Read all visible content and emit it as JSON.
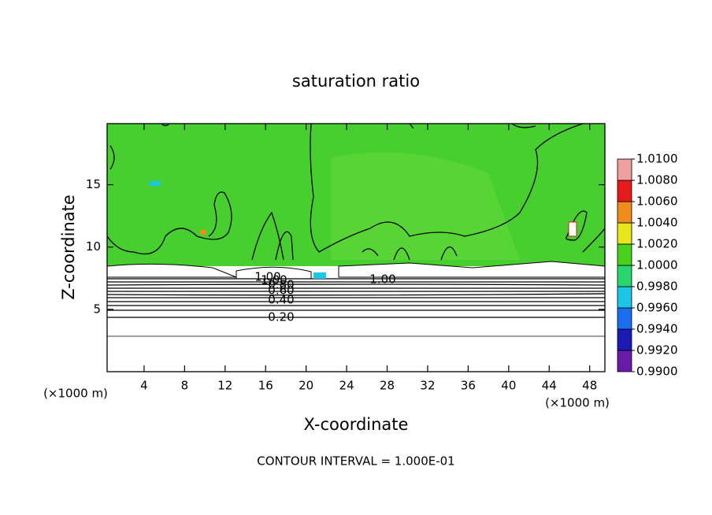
{
  "chart_data": {
    "type": "contour",
    "title": "saturation ratio",
    "xlabel": "X-coordinate",
    "ylabel": "Z-coordinate",
    "x_unit": "(×1000 m)",
    "footer": "CONTOUR INTERVAL = 1.000E-01",
    "xlim": [
      0.35,
      49.5
    ],
    "ylim": [
      0,
      19.9
    ],
    "xticks": [
      4,
      8,
      12,
      16,
      20,
      24,
      28,
      32,
      36,
      40,
      44,
      48
    ],
    "yticks": [
      5,
      10,
      15
    ],
    "contour_labels": [
      {
        "value": 1,
        "label": "1.00"
      },
      {
        "value": 0.8,
        "label": "0.80"
      },
      {
        "value": 0.6,
        "label": "0.60"
      },
      {
        "value": 0.4,
        "label": "0.40"
      },
      {
        "value": 0.2,
        "label": "0.20"
      },
      {
        "value": 1,
        "label": "1.00"
      },
      {
        "value": 1,
        "label": "1.00"
      }
    ],
    "colorbar": {
      "ticks": [
        {
          "value": 0.99,
          "label": "0.9900"
        },
        {
          "value": 0.992,
          "label": "0.9920"
        },
        {
          "value": 0.994,
          "label": "0.9940"
        },
        {
          "value": 0.996,
          "label": "0.9960"
        },
        {
          "value": 0.998,
          "label": "0.9980"
        },
        {
          "value": 1,
          "label": "1.0000"
        },
        {
          "value": 1.002,
          "label": "1.0020"
        },
        {
          "value": 1.004,
          "label": "1.0040"
        },
        {
          "value": 1.006,
          "label": "1.0060"
        },
        {
          "value": 1.008,
          "label": "1.0080"
        },
        {
          "value": 1.01,
          "label": "1.0100"
        }
      ],
      "colors": [
        "#6a1aa8",
        "#1a1ab4",
        "#1a6ef0",
        "#1ac8e6",
        "#28d86e",
        "#48d21e",
        "#e6e61a",
        "#f08c1a",
        "#e61a1a",
        "#f0a0a0"
      ]
    }
  }
}
